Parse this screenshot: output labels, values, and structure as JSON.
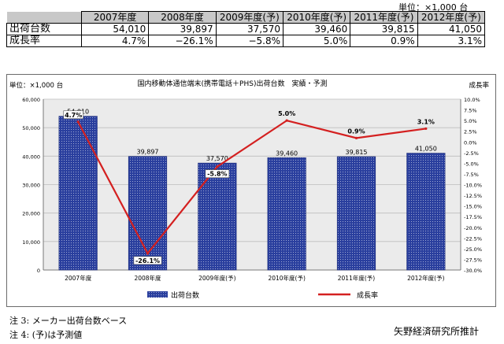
{
  "unit_top": "単位：×1,000 台",
  "table": {
    "header": [
      "",
      "2007年度",
      "2008年度",
      "2009年度(予)",
      "2010年度(予)",
      "2011年度(予)",
      "2012年度(予)"
    ],
    "rows": [
      {
        "label": "出荷台数",
        "values": [
          "54,010",
          "39,897",
          "37,570",
          "39,460",
          "39,815",
          "41,050"
        ]
      },
      {
        "label": "成長率",
        "values": [
          "4.7%",
          "−26.1%",
          "−5.8%",
          "5.0%",
          "0.9%",
          "3.1%"
        ]
      }
    ]
  },
  "chart_data": {
    "type": "bar+line",
    "title": "国内移動体通信端末(携帯電話＋PHS)出荷台数　実績・予測",
    "y_left_label": "単位：×1,000 台",
    "y_right_label": "成長率",
    "categories": [
      "2007年度",
      "2008年度",
      "2009年度(予)",
      "2010年度(予)",
      "2011年度(予)",
      "2012年度(予)"
    ],
    "series": [
      {
        "name": "出荷台数",
        "kind": "bar",
        "axis": "left",
        "values": [
          54010,
          39897,
          37570,
          39460,
          39815,
          41050
        ],
        "labels": [
          "54,010",
          "39,897",
          "37,570",
          "39,460",
          "39,815",
          "41,050"
        ]
      },
      {
        "name": "成長率",
        "kind": "line",
        "axis": "right",
        "values": [
          4.7,
          -26.1,
          -5.8,
          5.0,
          0.9,
          3.1
        ],
        "labels": [
          "4.7%",
          "-26.1%",
          "-5.8%",
          "5.0%",
          "0.9%",
          "3.1%"
        ]
      }
    ],
    "y_left": {
      "min": 0,
      "max": 60000,
      "step": 10000,
      "ticks": [
        "0",
        "10,000",
        "20,000",
        "30,000",
        "40,000",
        "50,000",
        "60,000"
      ]
    },
    "y_right": {
      "min": -30,
      "max": 10,
      "step": 2.5,
      "ticks": [
        "10.0%",
        "7.5%",
        "5.0%",
        "2.5%",
        "0.0%",
        "-2.5%",
        "-5.0%",
        "-7.5%",
        "-10.0%",
        "-12.5%",
        "-15.0%",
        "-17.5%",
        "-20.0%",
        "-22.5%",
        "-25.0%",
        "-27.5%",
        "-30.0%"
      ]
    },
    "grid": true,
    "legend": "bottom",
    "colors": {
      "bar": "#2a3f9e",
      "line": "#d42020",
      "plot_bg": "#ebebeb"
    }
  },
  "notes": {
    "note3": "注 3:  メーカー出荷台数ベース",
    "note4": "注 4:  (予)は予測値",
    "source": "矢野経済研究所推計"
  }
}
